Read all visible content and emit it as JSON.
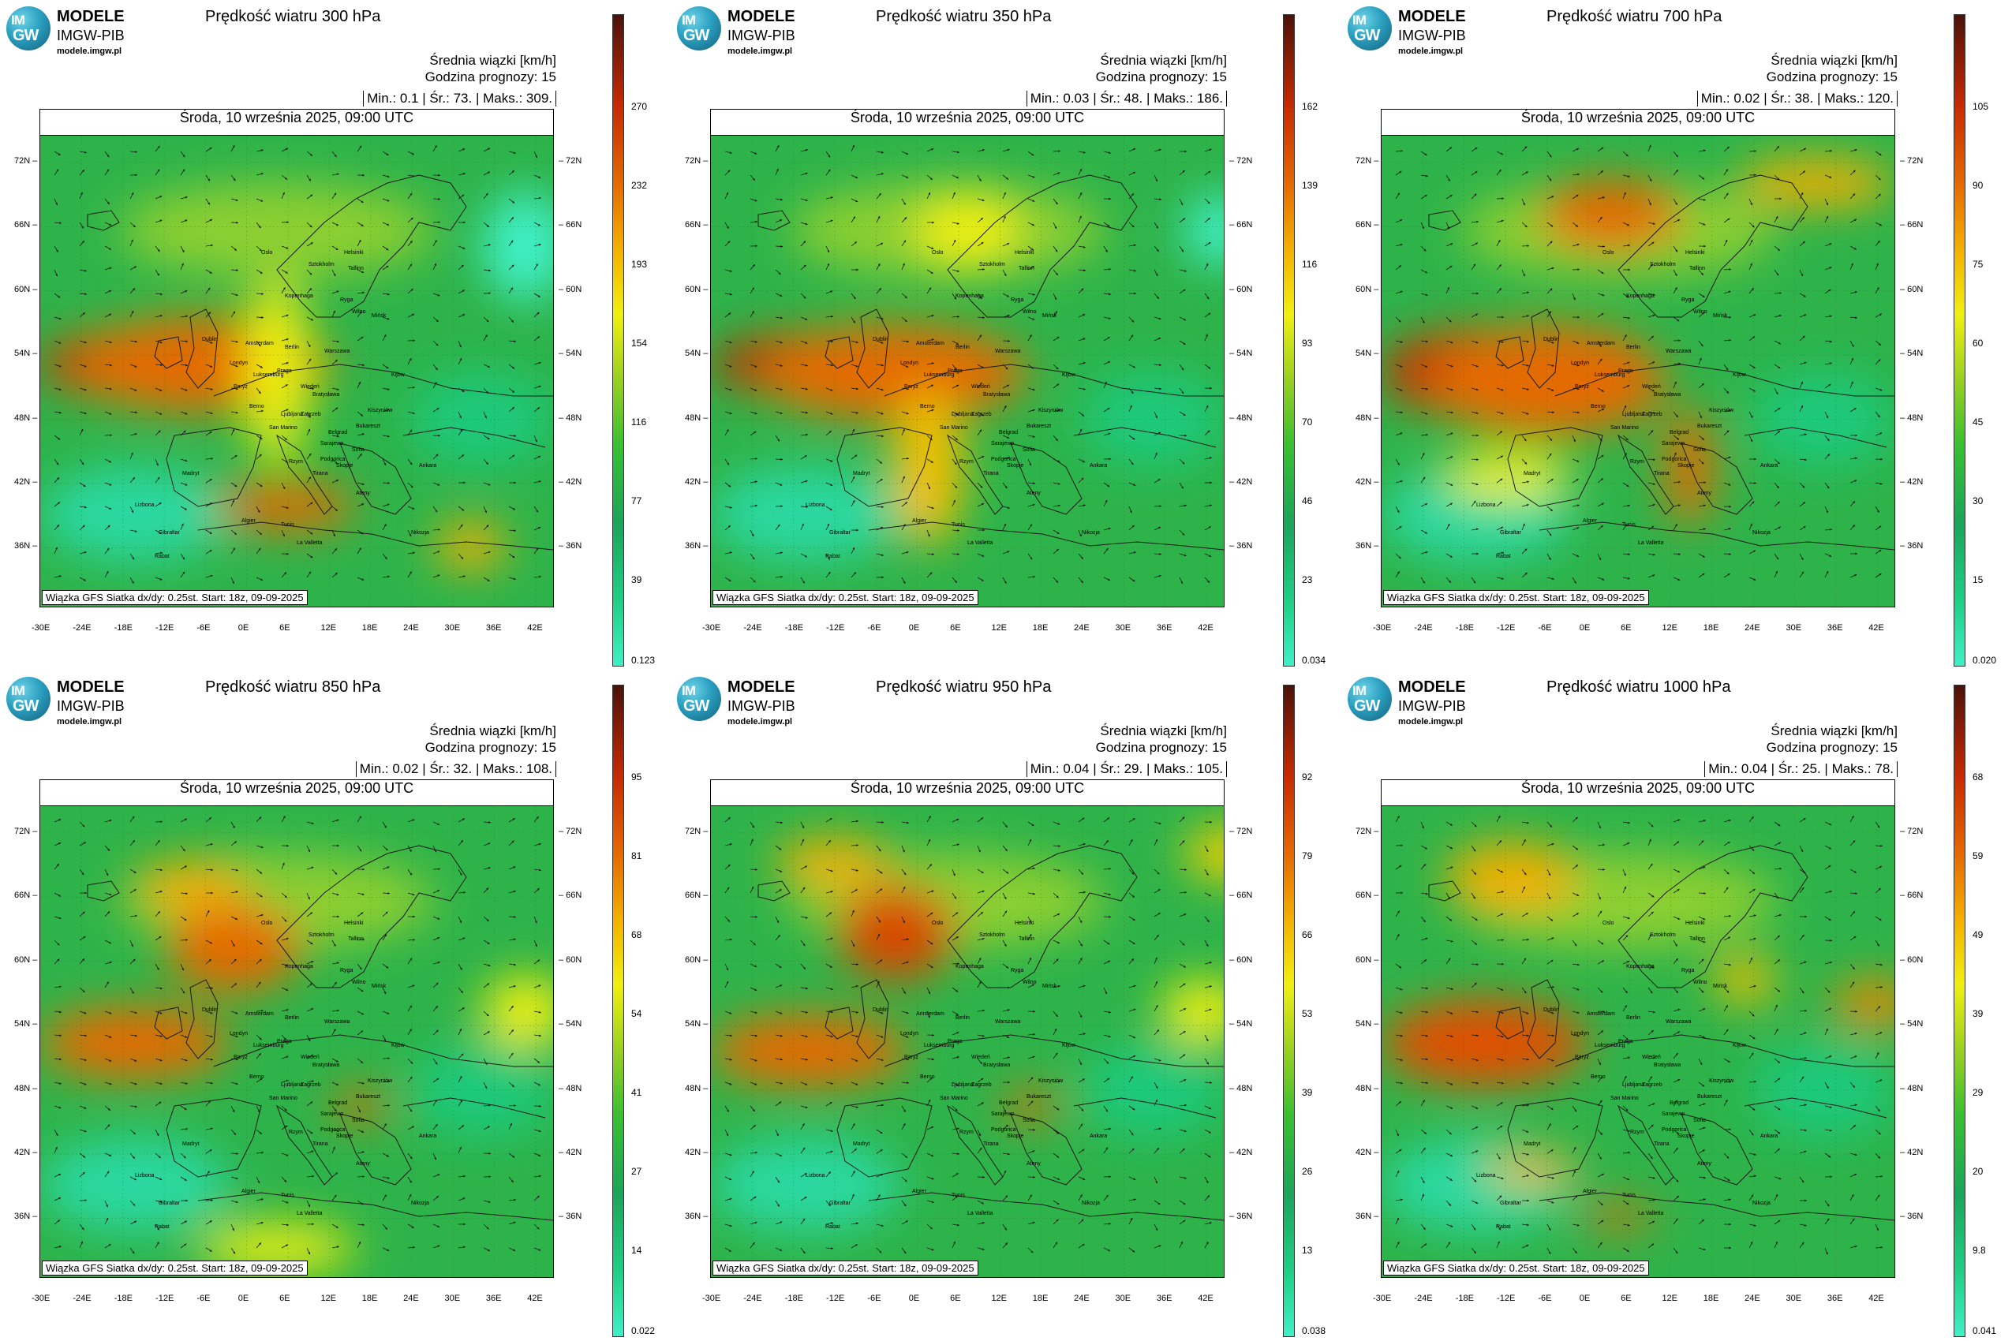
{
  "logo": {
    "circle_top": "IM",
    "circle_bottom": "GW",
    "line1": "MODELE",
    "line2": "IMGW-PIB",
    "line3": "modele.imgw.pl"
  },
  "common": {
    "meta_line1": "Średnia wiązki [km/h]",
    "meta_line2": "Godzina prognozy: 15",
    "date": "Środa, 10 września 2025, 09:00 UTC",
    "credit": "Wiązka GFS Siatka dx/dy: 0.25st. Start: 18z, 09-09-2025",
    "lat_labels": [
      "72N",
      "66N",
      "60N",
      "54N",
      "48N",
      "42N",
      "36N"
    ],
    "lon_labels": [
      "-30E",
      "-24E",
      "-18E",
      "-12E",
      "-6E",
      "0E",
      "6E",
      "12E",
      "18E",
      "24E",
      "30E",
      "36E",
      "42E"
    ],
    "cities": [
      "Oslo",
      "Helsinki",
      "Sztokholm",
      "Tallinn",
      "Ryga",
      "Kopenhaga",
      "Wilno",
      "Mińsk",
      "Dublin",
      "Amsterdam",
      "Berlin",
      "Warszawa",
      "Londyn",
      "Luksemburg",
      "Praga",
      "Kijów",
      "Paryż",
      "Wiedeń",
      "Bratysława",
      "Berno",
      "Kiszyniów",
      "Ljubljana",
      "Zagrzeb",
      "Bukareszt",
      "San Marino",
      "Belgrad",
      "Sarajewo",
      "Sofia",
      "Podgorica",
      "Madryt",
      "Rzym",
      "Skopje",
      "Tirana",
      "Ankara",
      "Lizbona",
      "Ateny",
      "Algier",
      "Tunis",
      "La Valletta",
      "Gibraltar",
      "Rabat",
      "Nikozja"
    ],
    "colors": {
      "low": "#3ff0c6",
      "green": "#1aa55a",
      "yellow": "#f0f010",
      "orange": "#e56a00",
      "red": "#c82a00",
      "max": "#4a1208"
    }
  },
  "panels": [
    {
      "title": "Prędkość wiatru 300 hPa",
      "min_label": "Min.:",
      "min": "0.1",
      "avg_label": "Śr.:",
      "avg": "73.",
      "max_label": "Maks.:",
      "max": "309.",
      "cbar": [
        "270",
        "232",
        "193",
        "154",
        "116",
        "77",
        "39",
        "0.123"
      ]
    },
    {
      "title": "Prędkość wiatru 350 hPa",
      "min_label": "Min.:",
      "min": "0.03",
      "avg_label": "Śr.:",
      "avg": "48.",
      "max_label": "Maks.:",
      "max": "186.",
      "cbar": [
        "162",
        "139",
        "116",
        "93",
        "70",
        "46",
        "23",
        "0.034"
      ]
    },
    {
      "title": "Prędkość wiatru 700 hPa",
      "min_label": "Min.:",
      "min": "0.02",
      "avg_label": "Śr.:",
      "avg": "38.",
      "max_label": "Maks.:",
      "max": "120.",
      "cbar": [
        "105",
        "90",
        "75",
        "60",
        "45",
        "30",
        "15",
        "0.020"
      ]
    },
    {
      "title": "Prędkość wiatru 850 hPa",
      "min_label": "Min.:",
      "min": "0.02",
      "avg_label": "Śr.:",
      "avg": "32.",
      "max_label": "Maks.:",
      "max": "108.",
      "cbar": [
        "95",
        "81",
        "68",
        "54",
        "41",
        "27",
        "14",
        "0.022"
      ]
    },
    {
      "title": "Prędkość wiatru 950 hPa",
      "min_label": "Min.:",
      "min": "0.04",
      "avg_label": "Śr.:",
      "avg": "29.",
      "max_label": "Maks.:",
      "max": "105.",
      "cbar": [
        "92",
        "79",
        "66",
        "53",
        "39",
        "26",
        "13",
        "0.038"
      ]
    },
    {
      "title": "Prędkość wiatru 1000 hPa",
      "min_label": "Min.:",
      "min": "0.04",
      "avg_label": "Śr.:",
      "avg": "25.",
      "max_label": "Maks.:",
      "max": "78.",
      "cbar": [
        "68",
        "59",
        "49",
        "39",
        "29",
        "20",
        "9.8",
        "0.041"
      ]
    }
  ]
}
